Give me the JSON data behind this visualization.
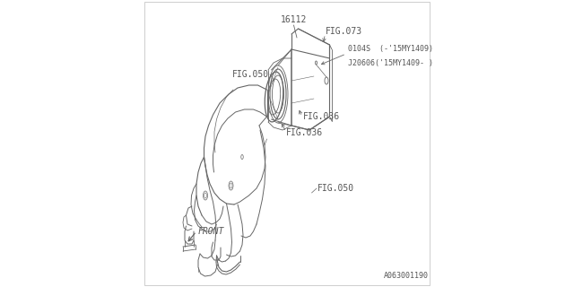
{
  "bg_color": "#ffffff",
  "line_color": "#666666",
  "text_color": "#555555",
  "fig_width": 6.4,
  "fig_height": 3.2,
  "dpi": 100,
  "part_number": "16112",
  "fig_073": "FIG.073",
  "fig_050_top": "FIG.050",
  "fig_036_bottom": "FIG.036",
  "fig_036_right": "FIG.036",
  "fig_050_bottom": "FIG.050",
  "label_0104s": "0104S  (-'15MY1409)",
  "label_j20606": "J20606('15MY1409- )",
  "front_label": "FRONT",
  "diagram_id": "A063001190",
  "font_size_labels": 7.0,
  "font_size_tiny": 6.0,
  "font_size_id": 6.0
}
